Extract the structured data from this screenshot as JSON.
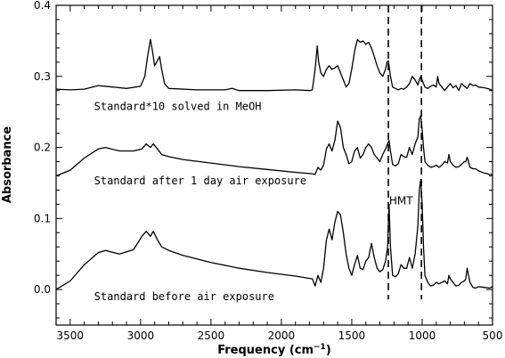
{
  "chart_data": {
    "type": "line",
    "xlabel": "Frequency (cm",
    "xlabel_sup": "−1",
    "xlabel_close": ")",
    "ylabel": "Absorbance",
    "xlim": [
      3600,
      500
    ],
    "ylim": [
      -0.05,
      0.4
    ],
    "x_ticks": [
      3500,
      3000,
      2500,
      2000,
      1500,
      1000,
      500
    ],
    "x_tick_labels": [
      "3500",
      "3000",
      "2500",
      "2000",
      "1500",
      "1000",
      "500"
    ],
    "y_ticks": [
      0.0,
      0.1,
      0.2,
      0.3,
      0.4
    ],
    "y_tick_labels": [
      "0.0",
      "0.1",
      "0.2",
      "0.3",
      "0.4"
    ],
    "grid": false,
    "series": [
      {
        "annotation": "Standard before air exposure",
        "x": [
          3600,
          3500,
          3400,
          3300,
          3250,
          3150,
          3050,
          2990,
          2960,
          2930,
          2910,
          2880,
          2850,
          2800,
          2700,
          2500,
          2300,
          2100,
          1900,
          1780,
          1760,
          1740,
          1720,
          1700,
          1680,
          1660,
          1640,
          1620,
          1600,
          1580,
          1560,
          1540,
          1520,
          1500,
          1480,
          1460,
          1440,
          1420,
          1400,
          1380,
          1360,
          1340,
          1320,
          1300,
          1280,
          1260,
          1245,
          1235,
          1225,
          1210,
          1190,
          1170,
          1150,
          1130,
          1110,
          1090,
          1070,
          1050,
          1030,
          1020,
          1010,
          1000,
          990,
          980,
          960,
          940,
          920,
          900,
          880,
          860,
          840,
          820,
          810,
          800,
          780,
          760,
          740,
          720,
          700,
          690,
          680,
          670,
          660,
          640,
          620,
          600,
          560,
          520,
          500
        ],
        "y": [
          0.0,
          0.012,
          0.035,
          0.052,
          0.055,
          0.05,
          0.056,
          0.075,
          0.082,
          0.075,
          0.082,
          0.07,
          0.06,
          0.055,
          0.048,
          0.038,
          0.03,
          0.024,
          0.019,
          0.015,
          0.005,
          0.02,
          0.01,
          0.03,
          0.07,
          0.085,
          0.07,
          0.095,
          0.11,
          0.105,
          0.08,
          0.05,
          0.03,
          0.02,
          0.035,
          0.048,
          0.03,
          0.028,
          0.04,
          0.045,
          0.065,
          0.045,
          0.03,
          0.025,
          0.028,
          0.04,
          0.06,
          0.12,
          0.06,
          0.02,
          0.018,
          0.022,
          0.035,
          0.03,
          0.03,
          0.045,
          0.03,
          0.05,
          0.09,
          0.14,
          0.155,
          0.12,
          0.06,
          0.02,
          0.01,
          0.005,
          0.006,
          0.01,
          0.008,
          0.01,
          0.012,
          0.008,
          0.02,
          0.015,
          0.01,
          0.005,
          0.006,
          0.01,
          0.012,
          0.015,
          0.03,
          0.02,
          0.01,
          0.003,
          0.002,
          0.004,
          0.003,
          0.002,
          0.004
        ]
      },
      {
        "annotation": "Standard after 1 day air exposure",
        "x": [
          3600,
          3500,
          3400,
          3300,
          3250,
          3150,
          3050,
          2990,
          2960,
          2930,
          2910,
          2880,
          2850,
          2800,
          2700,
          2500,
          2300,
          2100,
          1900,
          1780,
          1760,
          1740,
          1720,
          1700,
          1680,
          1660,
          1640,
          1620,
          1600,
          1580,
          1560,
          1540,
          1520,
          1500,
          1480,
          1460,
          1440,
          1420,
          1400,
          1380,
          1360,
          1340,
          1320,
          1300,
          1280,
          1260,
          1245,
          1235,
          1225,
          1210,
          1190,
          1170,
          1150,
          1130,
          1110,
          1090,
          1070,
          1050,
          1030,
          1020,
          1010,
          1000,
          990,
          980,
          960,
          940,
          920,
          900,
          880,
          860,
          840,
          820,
          810,
          800,
          780,
          760,
          740,
          720,
          700,
          690,
          680,
          670,
          660,
          640,
          620,
          600,
          560,
          520,
          500
        ],
        "y": [
          0.16,
          0.168,
          0.185,
          0.198,
          0.2,
          0.195,
          0.195,
          0.198,
          0.205,
          0.2,
          0.205,
          0.198,
          0.19,
          0.187,
          0.183,
          0.178,
          0.173,
          0.169,
          0.165,
          0.163,
          0.162,
          0.172,
          0.168,
          0.175,
          0.198,
          0.205,
          0.195,
          0.21,
          0.237,
          0.228,
          0.2,
          0.19,
          0.177,
          0.18,
          0.195,
          0.2,
          0.185,
          0.19,
          0.2,
          0.205,
          0.2,
          0.19,
          0.185,
          0.18,
          0.19,
          0.198,
          0.205,
          0.21,
          0.195,
          0.176,
          0.174,
          0.177,
          0.19,
          0.187,
          0.186,
          0.2,
          0.19,
          0.205,
          0.215,
          0.24,
          0.245,
          0.225,
          0.2,
          0.18,
          0.175,
          0.172,
          0.173,
          0.175,
          0.172,
          0.175,
          0.18,
          0.178,
          0.19,
          0.18,
          0.175,
          0.172,
          0.173,
          0.176,
          0.18,
          0.18,
          0.186,
          0.18,
          0.172,
          0.17,
          0.17,
          0.167,
          0.164,
          0.162,
          0.162
        ]
      },
      {
        "annotation": "Standard*10 solved in MeOH",
        "x": [
          3600,
          3500,
          3400,
          3300,
          3200,
          3100,
          3000,
          2970,
          2950,
          2930,
          2915,
          2900,
          2880,
          2865,
          2850,
          2830,
          2800,
          2600,
          2400,
          2350,
          2300,
          2100,
          1900,
          1800,
          1780,
          1760,
          1745,
          1735,
          1720,
          1700,
          1680,
          1660,
          1640,
          1620,
          1600,
          1580,
          1560,
          1540,
          1520,
          1500,
          1480,
          1460,
          1440,
          1420,
          1400,
          1380,
          1360,
          1340,
          1320,
          1300,
          1280,
          1260,
          1250,
          1240,
          1225,
          1210,
          1190,
          1170,
          1150,
          1130,
          1110,
          1090,
          1070,
          1050,
          1030,
          1020,
          1010,
          1000,
          990,
          980,
          960,
          940,
          920,
          900,
          890,
          880,
          860,
          840,
          820,
          800,
          780,
          760,
          740,
          720,
          700,
          680,
          660,
          640,
          620,
          600,
          560,
          520,
          500
        ],
        "y": [
          0.282,
          0.281,
          0.282,
          0.287,
          0.285,
          0.283,
          0.286,
          0.3,
          0.328,
          0.352,
          0.335,
          0.315,
          0.322,
          0.328,
          0.31,
          0.29,
          0.283,
          0.281,
          0.281,
          0.283,
          0.28,
          0.28,
          0.281,
          0.28,
          0.281,
          0.31,
          0.343,
          0.32,
          0.305,
          0.3,
          0.31,
          0.315,
          0.31,
          0.312,
          0.315,
          0.305,
          0.295,
          0.285,
          0.29,
          0.31,
          0.335,
          0.352,
          0.348,
          0.35,
          0.345,
          0.348,
          0.34,
          0.328,
          0.315,
          0.305,
          0.3,
          0.31,
          0.32,
          0.322,
          0.3,
          0.285,
          0.283,
          0.281,
          0.283,
          0.282,
          0.285,
          0.29,
          0.3,
          0.295,
          0.288,
          0.295,
          0.3,
          0.295,
          0.29,
          0.285,
          0.283,
          0.286,
          0.288,
          0.285,
          0.3,
          0.29,
          0.285,
          0.28,
          0.285,
          0.29,
          0.284,
          0.287,
          0.28,
          0.29,
          0.286,
          0.283,
          0.29,
          0.287,
          0.288,
          0.285,
          0.284,
          0.282,
          0.28
        ]
      }
    ],
    "vertical_markers": [
      {
        "x": 1240,
        "style": "dashed"
      },
      {
        "x": 1005,
        "style": "dash-dot"
      }
    ],
    "marker_label": "HMT",
    "annotations": [
      {
        "text": "Standard*10 solved in MeOH",
        "x": 3330,
        "y": 0.253
      },
      {
        "text": "Standard after 1 day air exposure",
        "x": 3330,
        "y": 0.148
      },
      {
        "text": "Standard before air exposure",
        "x": 3330,
        "y": -0.015
      },
      {
        "text": "HMT",
        "x": 1150,
        "y": 0.12
      }
    ]
  }
}
